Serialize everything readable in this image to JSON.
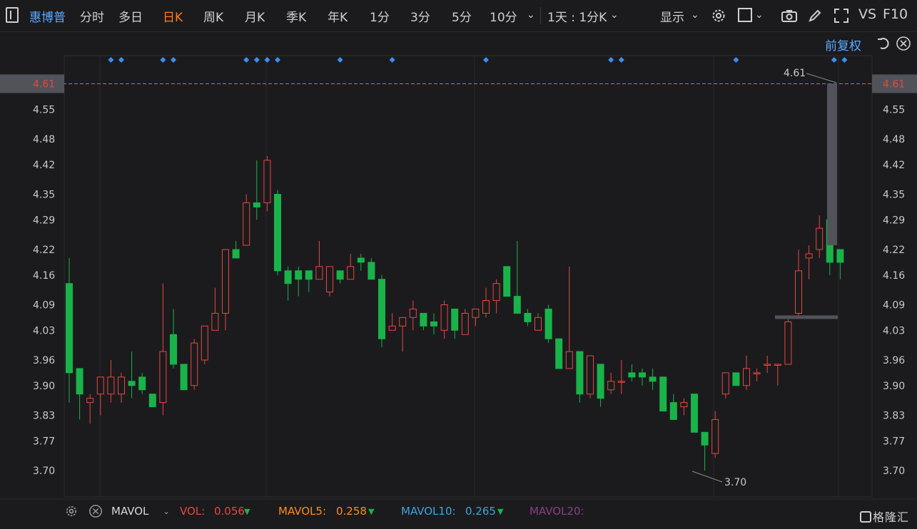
{
  "toolbar": {
    "stock_name": "惠博普",
    "tabs": [
      "分时",
      "多日",
      "日K",
      "周K",
      "月K",
      "季K",
      "年K",
      "1分",
      "3分",
      "5分",
      "10分"
    ],
    "active_tab": "日K",
    "period_select": "1天 : 1分K",
    "display_label": "显示",
    "vs_label": "VS",
    "f10_label": "F10",
    "adjust_label": "前复权"
  },
  "colors": {
    "up": "#e8473e",
    "down": "#19b34a",
    "accent": "#ff7a1a",
    "link": "#5aa9ff",
    "price_line": "#e06a3a"
  },
  "chart_data": {
    "type": "candlestick",
    "ylim": [
      3.66,
      4.66
    ],
    "y_ticks": [
      "4.61",
      "4.55",
      "4.48",
      "4.42",
      "4.35",
      "4.29",
      "4.22",
      "4.16",
      "4.09",
      "4.03",
      "3.96",
      "3.90",
      "3.83",
      "3.77",
      "3.70"
    ],
    "current_price": "4.61",
    "max_label": "4.61",
    "min_label": "3.70",
    "event_markers": [
      4,
      5,
      9,
      10,
      17,
      18,
      19,
      20,
      26,
      31,
      40,
      52,
      53,
      64,
      73,
      74
    ],
    "candles": [
      [
        4.14,
        3.93,
        4.2,
        3.86
      ],
      [
        3.94,
        3.88,
        3.94,
        3.82
      ],
      [
        3.86,
        3.87,
        3.88,
        3.81
      ],
      [
        3.88,
        3.92,
        3.92,
        3.83
      ],
      [
        3.88,
        3.92,
        3.96,
        3.86
      ],
      [
        3.88,
        3.92,
        3.93,
        3.86
      ],
      [
        3.91,
        3.9,
        3.98,
        3.87
      ],
      [
        3.92,
        3.89,
        3.93,
        3.88
      ],
      [
        3.88,
        3.85,
        3.88,
        3.85
      ],
      [
        3.86,
        3.98,
        4.14,
        3.83
      ],
      [
        4.02,
        3.95,
        4.08,
        3.94
      ],
      [
        3.95,
        3.89,
        3.95,
        3.89
      ],
      [
        3.9,
        4.0,
        4.01,
        3.89
      ],
      [
        3.96,
        4.04,
        4.04,
        3.95
      ],
      [
        4.03,
        4.07,
        4.13,
        4.03
      ],
      [
        4.07,
        4.22,
        4.22,
        4.03
      ],
      [
        4.22,
        4.2,
        4.24,
        4.2
      ],
      [
        4.23,
        4.33,
        4.35,
        4.23
      ],
      [
        4.33,
        4.32,
        4.43,
        4.29
      ],
      [
        4.33,
        4.43,
        4.44,
        4.31
      ],
      [
        4.35,
        4.17,
        4.36,
        4.16
      ],
      [
        4.17,
        4.14,
        4.18,
        4.1
      ],
      [
        4.17,
        4.15,
        4.18,
        4.11
      ],
      [
        4.17,
        4.15,
        4.17,
        4.12
      ],
      [
        4.15,
        4.18,
        4.24,
        4.15
      ],
      [
        4.12,
        4.18,
        4.18,
        4.11
      ],
      [
        4.17,
        4.15,
        4.17,
        4.14
      ],
      [
        4.15,
        4.18,
        4.21,
        4.15
      ],
      [
        4.2,
        4.19,
        4.21,
        4.17
      ],
      [
        4.19,
        4.15,
        4.2,
        4.15
      ],
      [
        4.15,
        4.01,
        4.16,
        3.99
      ],
      [
        4.03,
        4.04,
        4.07,
        4.03
      ],
      [
        4.04,
        4.06,
        4.06,
        3.98
      ],
      [
        4.06,
        4.08,
        4.1,
        4.03
      ],
      [
        4.07,
        4.04,
        4.07,
        4.03
      ],
      [
        4.05,
        4.04,
        4.07,
        4.02
      ],
      [
        4.03,
        4.09,
        4.1,
        4.01
      ],
      [
        4.08,
        4.03,
        4.08,
        4.01
      ],
      [
        4.02,
        4.07,
        4.08,
        4.02
      ],
      [
        4.06,
        4.08,
        4.08,
        4.04
      ],
      [
        4.07,
        4.1,
        4.13,
        4.06
      ],
      [
        4.1,
        4.14,
        4.15,
        4.07
      ],
      [
        4.18,
        4.11,
        4.18,
        4.11
      ],
      [
        4.11,
        4.07,
        4.24,
        4.07
      ],
      [
        4.07,
        4.05,
        4.08,
        4.04
      ],
      [
        4.03,
        4.06,
        4.07,
        4.03
      ],
      [
        4.08,
        4.01,
        4.09,
        4.0
      ],
      [
        4.01,
        3.94,
        4.01,
        3.94
      ],
      [
        3.94,
        3.98,
        4.18,
        3.94
      ],
      [
        3.98,
        3.88,
        3.98,
        3.86
      ],
      [
        3.88,
        3.97,
        3.97,
        3.87
      ],
      [
        3.95,
        3.87,
        3.95,
        3.85
      ],
      [
        3.89,
        3.91,
        3.93,
        3.88
      ],
      [
        3.91,
        3.91,
        3.96,
        3.88
      ],
      [
        3.93,
        3.92,
        3.95,
        3.91
      ],
      [
        3.93,
        3.92,
        3.94,
        3.9
      ],
      [
        3.92,
        3.91,
        3.94,
        3.89
      ],
      [
        3.92,
        3.84,
        3.92,
        3.84
      ],
      [
        3.86,
        3.82,
        3.88,
        3.82
      ],
      [
        3.85,
        3.86,
        3.87,
        3.83
      ],
      [
        3.88,
        3.79,
        3.88,
        3.79
      ],
      [
        3.79,
        3.76,
        3.79,
        3.7
      ],
      [
        3.74,
        3.82,
        3.84,
        3.73
      ],
      [
        3.88,
        3.93,
        3.93,
        3.87
      ],
      [
        3.93,
        3.9,
        3.93,
        3.9
      ],
      [
        3.9,
        3.94,
        3.97,
        3.89
      ],
      [
        3.93,
        3.93,
        3.94,
        3.91
      ],
      [
        3.95,
        3.95,
        3.97,
        3.93
      ],
      [
        3.95,
        3.95,
        3.95,
        3.9
      ],
      [
        3.95,
        4.05,
        4.06,
        3.95
      ],
      [
        4.07,
        4.17,
        4.22,
        4.06
      ],
      [
        4.2,
        4.21,
        4.23,
        4.15
      ],
      [
        4.22,
        4.27,
        4.3,
        4.2
      ],
      [
        4.29,
        4.19,
        4.29,
        4.16
      ],
      [
        4.22,
        4.19,
        4.22,
        4.15
      ]
    ],
    "special_bars": [
      {
        "label": "4.61",
        "top": 4.61,
        "bottom": 4.23
      },
      {
        "label": "4.06",
        "top": 4.065,
        "bottom": 4.055
      }
    ]
  },
  "volume": {
    "indicator": "MAVOL",
    "vol_label": "VOL:",
    "vol_value": "0.056",
    "mavol5_label": "MAVOL5:",
    "mavol5_value": "0.258",
    "mavol10_label": "MAVOL10:",
    "mavol10_value": "0.265",
    "mavol20_label": "MAVOL20:"
  },
  "branding": {
    "logo": "格隆汇"
  }
}
